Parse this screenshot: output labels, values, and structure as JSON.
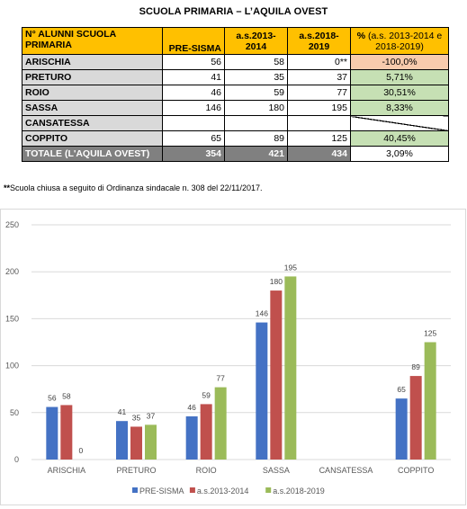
{
  "title": "SCUOLA PRIMARIA – L’AQUILA OVEST",
  "table": {
    "headers": {
      "name": "N° ALUNNI SCUOLA PRIMARIA",
      "pre": "PRE-SISMA",
      "as1314": "a.s.2013-2014",
      "as1819": "a.s.2018-2019",
      "pct_bold": "%",
      "pct_rest": " (a.s. 2013-2014 e 2018-2019)"
    },
    "rows": [
      {
        "name": "ARISCHIA",
        "pre": "56",
        "as1314": "58",
        "as1819": "0**",
        "pct": "-100,0%"
      },
      {
        "name": "PRETURO",
        "pre": "41",
        "as1314": "35",
        "as1819": "37",
        "pct": "5,71%"
      },
      {
        "name": "ROIO",
        "pre": "46",
        "as1314": "59",
        "as1819": "77",
        "pct": "30,51%"
      },
      {
        "name": "SASSA",
        "pre": "146",
        "as1314": "180",
        "as1819": "195",
        "pct": "8,33%"
      },
      {
        "name": "CANSATESSA",
        "pre": "",
        "as1314": "",
        "as1819": "",
        "pct": ""
      },
      {
        "name": "COPPITO",
        "pre": "65",
        "as1314": "89",
        "as1819": "125",
        "pct": "40,45%"
      }
    ],
    "total": {
      "name": "TOTALE (L'AQUILA OVEST)",
      "pre": "354",
      "as1314": "421",
      "as1819": "434",
      "pct": "3,09%"
    }
  },
  "footnote": {
    "mark": "**",
    "text": "Scuola chiusa a seguito di Ordinanza sindacale n. 308 del 22/11/2017."
  },
  "chart_data": {
    "type": "bar",
    "categories": [
      "ARISCHIA",
      "PRETURO",
      "ROIO",
      "SASSA",
      "CANSATESSA",
      "COPPITO"
    ],
    "series": [
      {
        "name": "PRE-SISMA",
        "color": "#4472c4",
        "values": [
          56,
          41,
          46,
          146,
          null,
          65
        ]
      },
      {
        "name": "a.s.2013-2014",
        "color": "#c0504d",
        "values": [
          58,
          35,
          59,
          180,
          null,
          89
        ]
      },
      {
        "name": "a.s.2018-2019",
        "color": "#9bbb59",
        "values": [
          0,
          37,
          77,
          195,
          null,
          125
        ]
      }
    ],
    "yticks": [
      0,
      50,
      100,
      150,
      200,
      250
    ],
    "ylim": [
      0,
      250
    ],
    "grid": true,
    "legend": "bottom",
    "data_labels": true
  }
}
